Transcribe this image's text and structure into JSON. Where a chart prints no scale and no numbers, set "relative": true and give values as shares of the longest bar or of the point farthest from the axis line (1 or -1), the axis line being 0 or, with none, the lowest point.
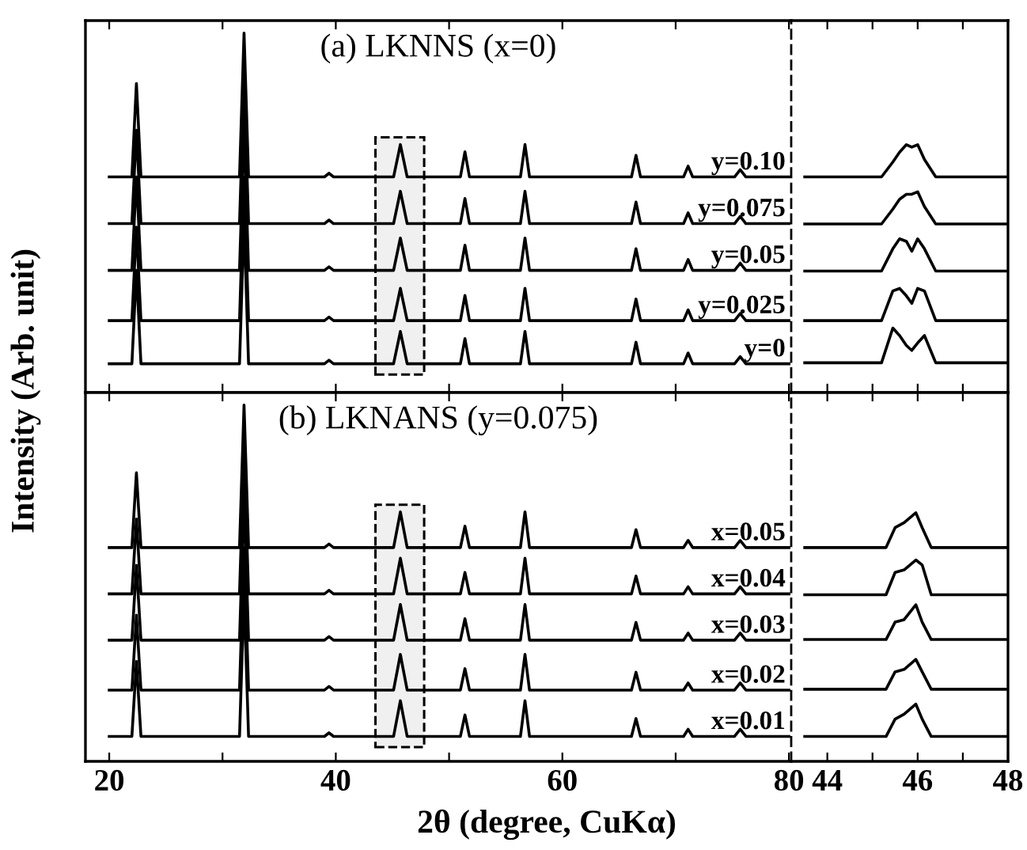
{
  "chart_data": [
    {
      "type": "line",
      "relative": true,
      "title": "(a) LKNNS (x=0)",
      "ylabel": "Intensity (Arb. unit)",
      "xlim": [
        17.9,
        80.2
      ],
      "xticks": [
        20,
        {
          "value": 30,
          "label": null
        },
        40,
        {
          "value": 50,
          "label": null
        },
        60,
        {
          "value": 70,
          "label": null
        },
        80
      ],
      "tick_labels": false,
      "x": [
        20,
        22.0,
        22.4,
        22.8,
        31.5,
        31.9,
        32.3,
        39.0,
        39.4,
        39.8,
        45.1,
        45.7,
        46.3,
        51.0,
        51.4,
        51.8,
        56.3,
        56.7,
        57.1,
        66.1,
        66.5,
        66.9,
        70.7,
        71.1,
        71.5,
        75.2,
        75.7,
        76.2,
        80
      ],
      "bands": [
        {
          "axis": "x",
          "from": 43.5,
          "to": 47.8,
          "color": "#000000"
        }
      ],
      "series": [
        {
          "name": "y=0.10",
          "color": "#000000",
          "values": [
            0.6,
            0.6,
            0.86,
            0.6,
            0.6,
            1.0,
            0.6,
            0.6,
            0.61,
            0.6,
            0.6,
            0.69,
            0.6,
            0.6,
            0.67,
            0.6,
            0.6,
            0.69,
            0.6,
            0.6,
            0.66,
            0.6,
            0.6,
            0.63,
            0.6,
            0.6,
            0.62,
            0.6,
            0.6
          ]
        },
        {
          "name": "y=0.075",
          "color": "#000000",
          "values": [
            0.47,
            0.47,
            0.73,
            0.47,
            0.47,
            0.87,
            0.47,
            0.47,
            0.48,
            0.47,
            0.47,
            0.56,
            0.47,
            0.47,
            0.54,
            0.47,
            0.47,
            0.56,
            0.47,
            0.47,
            0.53,
            0.47,
            0.47,
            0.5,
            0.47,
            0.47,
            0.49,
            0.47,
            0.47
          ]
        },
        {
          "name": "y=0.05",
          "color": "#000000",
          "values": [
            0.34,
            0.34,
            0.6,
            0.34,
            0.34,
            0.74,
            0.34,
            0.34,
            0.35,
            0.34,
            0.34,
            0.43,
            0.34,
            0.34,
            0.41,
            0.34,
            0.34,
            0.43,
            0.34,
            0.34,
            0.4,
            0.34,
            0.34,
            0.37,
            0.34,
            0.34,
            0.36,
            0.34,
            0.34
          ]
        },
        {
          "name": "y=0.025",
          "color": "#000000",
          "values": [
            0.2,
            0.2,
            0.46,
            0.2,
            0.2,
            0.6,
            0.2,
            0.2,
            0.21,
            0.2,
            0.2,
            0.29,
            0.2,
            0.2,
            0.27,
            0.2,
            0.2,
            0.29,
            0.2,
            0.2,
            0.26,
            0.2,
            0.2,
            0.23,
            0.2,
            0.2,
            0.22,
            0.2,
            0.2
          ]
        },
        {
          "name": "y=0",
          "color": "#000000",
          "values": [
            0.08,
            0.08,
            0.34,
            0.08,
            0.08,
            0.48,
            0.08,
            0.08,
            0.09,
            0.08,
            0.08,
            0.17,
            0.08,
            0.08,
            0.15,
            0.08,
            0.08,
            0.17,
            0.08,
            0.08,
            0.14,
            0.08,
            0.08,
            0.11,
            0.08,
            0.08,
            0.1,
            0.08,
            0.08
          ]
        }
      ]
    },
    {
      "type": "line",
      "relative": true,
      "xlim": [
        43.2,
        48
      ],
      "xticks": [
        44,
        {
          "value": 45,
          "label": null
        },
        46,
        {
          "value": 47,
          "label": null
        },
        48
      ],
      "tick_labels": false,
      "x": [
        43.5,
        45.2,
        45.45,
        45.6,
        45.75,
        45.87,
        46.0,
        46.15,
        46.4,
        48
      ],
      "series": [
        {
          "color": "#000000",
          "values": [
            0.87,
            0.87,
            0.93,
            0.97,
            1.0,
            0.99,
            1.0,
            0.94,
            0.87,
            0.87
          ]
        },
        {
          "color": "#000000",
          "values": [
            0.68,
            0.68,
            0.74,
            0.78,
            0.8,
            0.8,
            0.81,
            0.75,
            0.68,
            0.68
          ]
        },
        {
          "color": "#000000",
          "values": [
            0.49,
            0.49,
            0.58,
            0.62,
            0.61,
            0.57,
            0.62,
            0.58,
            0.49,
            0.49
          ]
        },
        {
          "color": "#000000",
          "values": [
            0.29,
            0.29,
            0.41,
            0.42,
            0.39,
            0.36,
            0.42,
            0.41,
            0.29,
            0.29
          ]
        },
        {
          "color": "#000000",
          "values": [
            0.12,
            0.12,
            0.26,
            0.23,
            0.19,
            0.17,
            0.2,
            0.23,
            0.12,
            0.12
          ]
        }
      ]
    },
    {
      "type": "line",
      "relative": true,
      "title": "(b) LKNANS (y=0.075)",
      "xlabel": "2θ (degree, CuKα)",
      "xlim": [
        17.9,
        80.2
      ],
      "xticks": [
        20,
        {
          "value": 30,
          "label": null
        },
        40,
        {
          "value": 50,
          "label": null
        },
        60,
        {
          "value": 70,
          "label": null
        },
        80
      ],
      "tick_labels": "x",
      "x": [
        20,
        22.0,
        22.4,
        22.8,
        31.5,
        31.9,
        32.3,
        39.0,
        39.4,
        39.8,
        45.1,
        45.7,
        46.3,
        51.0,
        51.4,
        51.8,
        56.3,
        56.7,
        57.1,
        66.1,
        66.5,
        66.9,
        70.7,
        71.1,
        71.5,
        75.2,
        75.7,
        76.2,
        80
      ],
      "bands": [
        {
          "axis": "x",
          "from": 43.5,
          "to": 47.8,
          "color": "#000000"
        }
      ],
      "series": [
        {
          "name": "x=0.05",
          "color": "#000000",
          "values": [
            0.6,
            0.6,
            0.81,
            0.6,
            0.6,
            1.0,
            0.6,
            0.6,
            0.61,
            0.6,
            0.6,
            0.7,
            0.6,
            0.6,
            0.66,
            0.6,
            0.6,
            0.7,
            0.6,
            0.6,
            0.65,
            0.6,
            0.6,
            0.62,
            0.6,
            0.6,
            0.62,
            0.6,
            0.6
          ]
        },
        {
          "name": "x=0.04",
          "color": "#000000",
          "values": [
            0.47,
            0.47,
            0.68,
            0.47,
            0.47,
            0.87,
            0.47,
            0.47,
            0.48,
            0.47,
            0.47,
            0.57,
            0.47,
            0.47,
            0.53,
            0.47,
            0.47,
            0.57,
            0.47,
            0.47,
            0.52,
            0.47,
            0.47,
            0.49,
            0.47,
            0.47,
            0.49,
            0.47,
            0.47
          ]
        },
        {
          "name": "x=0.03",
          "color": "#000000",
          "values": [
            0.34,
            0.34,
            0.55,
            0.34,
            0.34,
            0.74,
            0.34,
            0.34,
            0.35,
            0.34,
            0.34,
            0.44,
            0.34,
            0.34,
            0.4,
            0.34,
            0.34,
            0.44,
            0.34,
            0.34,
            0.39,
            0.34,
            0.34,
            0.36,
            0.34,
            0.34,
            0.36,
            0.34,
            0.34
          ]
        },
        {
          "name": "x=0.02",
          "color": "#000000",
          "values": [
            0.2,
            0.2,
            0.41,
            0.2,
            0.2,
            0.6,
            0.2,
            0.2,
            0.21,
            0.2,
            0.2,
            0.3,
            0.2,
            0.2,
            0.26,
            0.2,
            0.2,
            0.3,
            0.2,
            0.2,
            0.25,
            0.2,
            0.2,
            0.22,
            0.2,
            0.2,
            0.22,
            0.2,
            0.2
          ]
        },
        {
          "name": "x=0.01",
          "color": "#000000",
          "values": [
            0.07,
            0.07,
            0.28,
            0.07,
            0.07,
            0.47,
            0.07,
            0.07,
            0.08,
            0.07,
            0.07,
            0.17,
            0.07,
            0.07,
            0.13,
            0.07,
            0.07,
            0.17,
            0.07,
            0.07,
            0.12,
            0.07,
            0.07,
            0.09,
            0.07,
            0.07,
            0.09,
            0.07,
            0.07
          ]
        }
      ]
    },
    {
      "type": "line",
      "relative": true,
      "xlim": [
        43.2,
        48
      ],
      "xticks": [
        44,
        {
          "value": 45,
          "label": null
        },
        46,
        {
          "value": 47,
          "label": null
        },
        48
      ],
      "tick_labels": "x",
      "x": [
        43.5,
        45.3,
        45.5,
        45.7,
        45.96,
        46.1,
        46.3,
        48
      ],
      "series": [
        {
          "color": "#000000",
          "values": [
            0.86,
            0.86,
            0.94,
            0.96,
            1.0,
            0.94,
            0.86,
            0.86
          ]
        },
        {
          "color": "#000000",
          "values": [
            0.67,
            0.67,
            0.76,
            0.77,
            0.81,
            0.79,
            0.67,
            0.67
          ]
        },
        {
          "color": "#000000",
          "values": [
            0.49,
            0.49,
            0.56,
            0.57,
            0.63,
            0.56,
            0.49,
            0.49
          ]
        },
        {
          "color": "#000000",
          "values": [
            0.29,
            0.29,
            0.36,
            0.37,
            0.41,
            0.36,
            0.29,
            0.29
          ]
        },
        {
          "color": "#000000",
          "values": [
            0.1,
            0.1,
            0.17,
            0.19,
            0.23,
            0.17,
            0.1,
            0.1
          ]
        }
      ]
    }
  ]
}
